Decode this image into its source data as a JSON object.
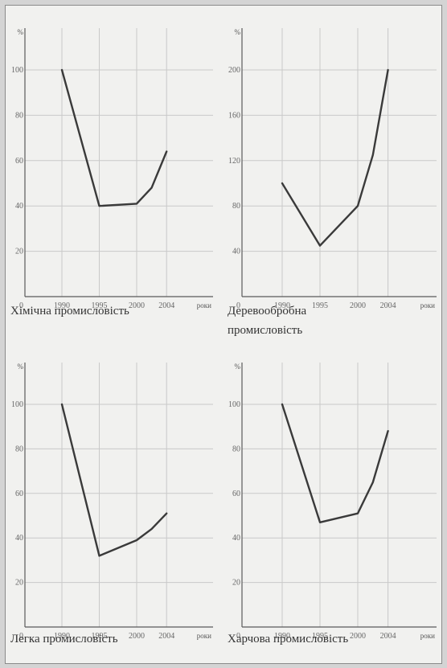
{
  "chart_data": [
    {
      "type": "line",
      "title": "Хімічна промисловість",
      "ylabel": "%",
      "xlabel": "роки",
      "origin_label": "0",
      "ylim": [
        0,
        100
      ],
      "yticks": [
        20,
        40,
        60,
        80,
        100
      ],
      "x_labels": [
        "1990",
        "1995",
        "2000",
        "2004"
      ],
      "series": [
        {
          "x": [
            1990,
            1995,
            2000,
            2002,
            2004
          ],
          "y": [
            100,
            40,
            41,
            48,
            64
          ]
        }
      ],
      "grid": true
    },
    {
      "type": "line",
      "title": "Деревообробна промисловість",
      "ylabel": "%",
      "xlabel": "роки",
      "origin_label": "0",
      "ylim": [
        0,
        200
      ],
      "yticks": [
        40,
        80,
        120,
        160,
        200
      ],
      "x_labels": [
        "1990",
        "1995",
        "2000",
        "2004"
      ],
      "series": [
        {
          "x": [
            1990,
            1995,
            2000,
            2002,
            2004
          ],
          "y": [
            100,
            45,
            80,
            125,
            200
          ]
        }
      ],
      "grid": true
    },
    {
      "type": "line",
      "title": "Легка промисловість",
      "ylabel": "%",
      "xlabel": "роки",
      "origin_label": "0",
      "ylim": [
        0,
        100
      ],
      "yticks": [
        20,
        40,
        60,
        80,
        100
      ],
      "x_labels": [
        "1990",
        "1995",
        "2000",
        "2004"
      ],
      "series": [
        {
          "x": [
            1990,
            1995,
            2000,
            2002,
            2004
          ],
          "y": [
            100,
            32,
            39,
            44,
            51
          ]
        }
      ],
      "grid": true
    },
    {
      "type": "line",
      "title": "Харчова промисловість",
      "ylabel": "%",
      "xlabel": "роки",
      "origin_label": "0",
      "ylim": [
        0,
        100
      ],
      "yticks": [
        20,
        40,
        60,
        80,
        100
      ],
      "x_labels": [
        "1990",
        "1995",
        "2000",
        "2004"
      ],
      "series": [
        {
          "x": [
            1990,
            1995,
            2000,
            2002,
            2004
          ],
          "y": [
            100,
            47,
            51,
            65,
            88
          ]
        }
      ],
      "grid": true
    }
  ],
  "colors": {
    "line": "#3a3a3a",
    "grid": "#c9c9c9",
    "axis": "#5a5a5a"
  }
}
